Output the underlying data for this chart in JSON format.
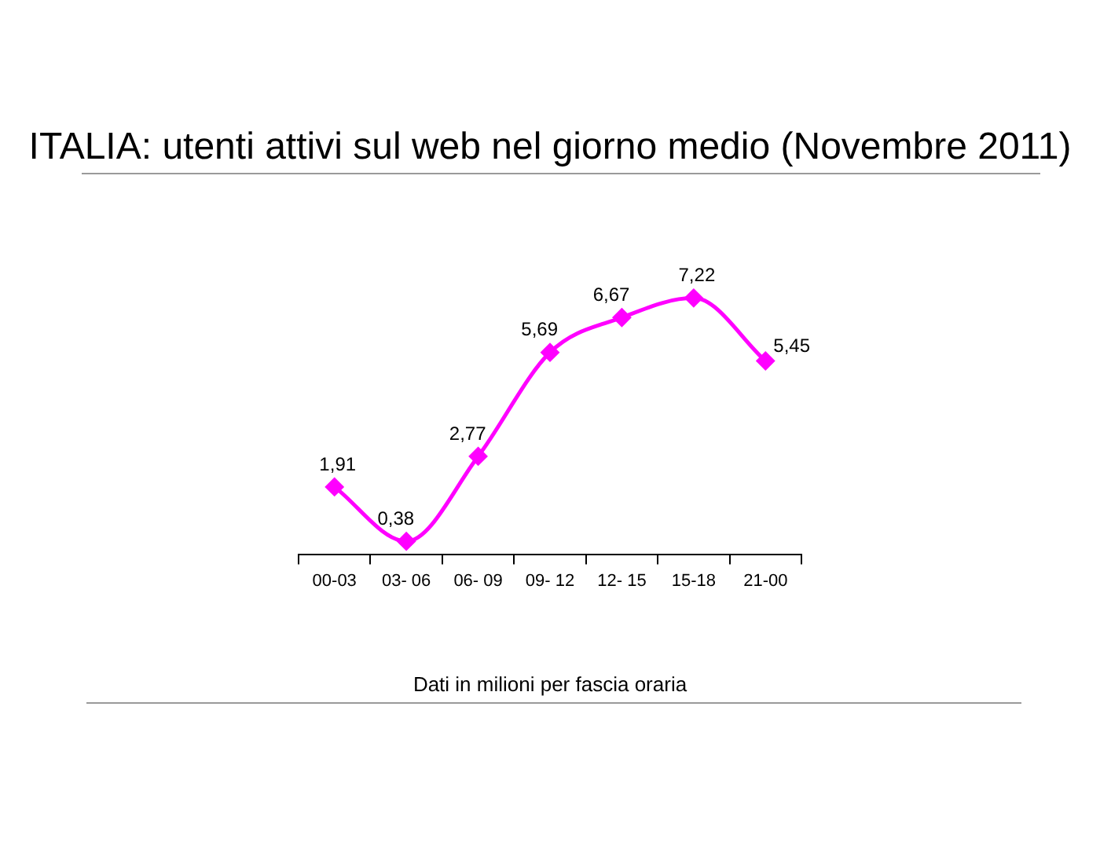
{
  "chart_data": {
    "type": "line",
    "title": "ITALIA: utenti attivi sul web nel giorno medio (Novembre 2011)",
    "xlabel": "Dati in milioni per fascia oraria",
    "categories": [
      "00-03",
      "03- 06",
      "06- 09",
      "09- 12",
      "12- 15",
      "15-18",
      "21-00"
    ],
    "series": [
      {
        "color": "#ff00ff",
        "values": [
          1.91,
          0.38,
          2.77,
          5.69,
          6.67,
          7.22,
          5.45
        ],
        "value_labels": [
          "1,91",
          "0,38",
          "2,77",
          "5,69",
          "6,67",
          "7,22",
          "5,45"
        ]
      }
    ],
    "marker": "diamond",
    "line_style": "solid",
    "tick_labels": "x"
  }
}
